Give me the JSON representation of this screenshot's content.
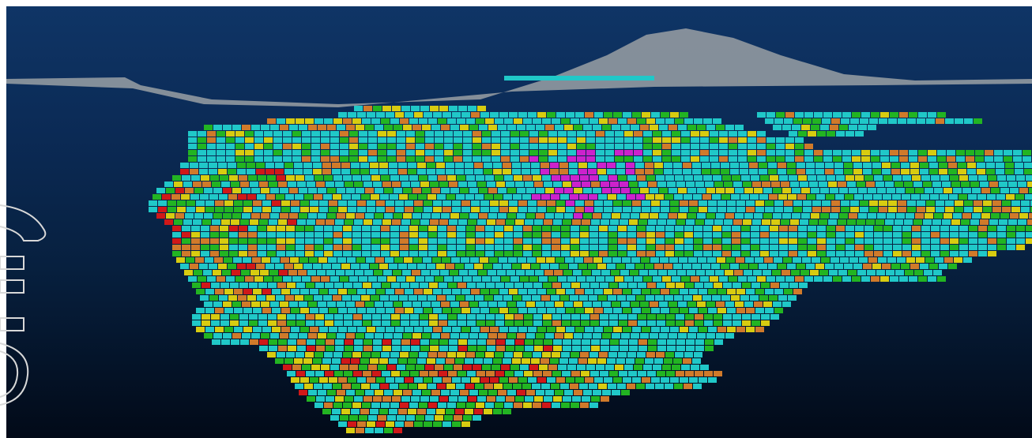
{
  "scene": {
    "description_type": "3D block model render",
    "background_colors": {
      "top": "#0f3566",
      "middle": "#07203f",
      "bottom": "#020a18"
    },
    "terrain_color": "#9aa0a4",
    "block_colors": {
      "base": "#20c8c8",
      "green": "#22b422",
      "yellow": "#d8cc10",
      "orange": "#d07a2a",
      "red": "#d01818",
      "magenta": "#cc22cc"
    }
  },
  "sidebar": {
    "icons": [
      "arch-icon",
      "rect-icon",
      "rect-icon",
      "rect-icon",
      "ring-icon"
    ]
  }
}
